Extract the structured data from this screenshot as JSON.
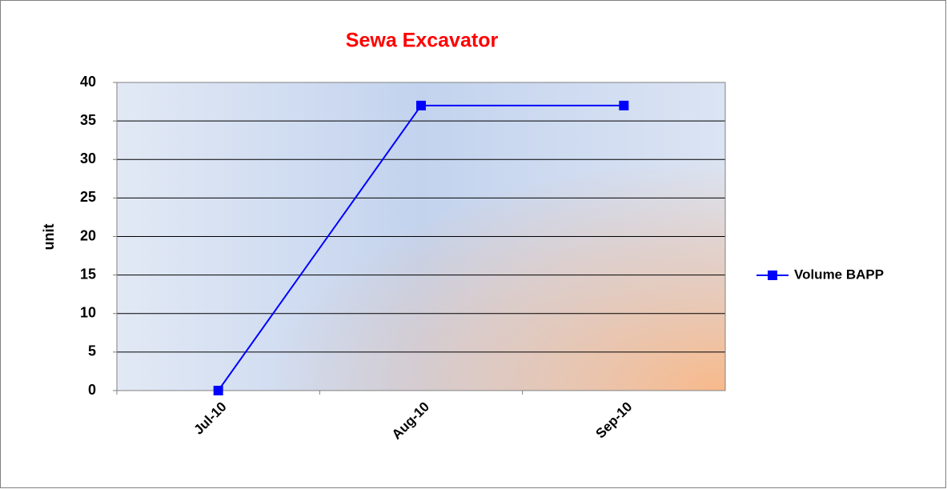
{
  "chart_data": {
    "type": "line",
    "title": "Sewa Excavator",
    "y_label": "unit",
    "categories": [
      "Jul-10",
      "Aug-10",
      "Sep-10"
    ],
    "series": [
      {
        "name": "Volume BAPP",
        "color": "#0000ff",
        "values": [
          0,
          37,
          37
        ]
      }
    ],
    "ylim": [
      0,
      40
    ],
    "yticks": [
      0,
      5,
      10,
      15,
      20,
      25,
      30,
      35,
      40
    ],
    "grid": true,
    "legend": "right"
  }
}
